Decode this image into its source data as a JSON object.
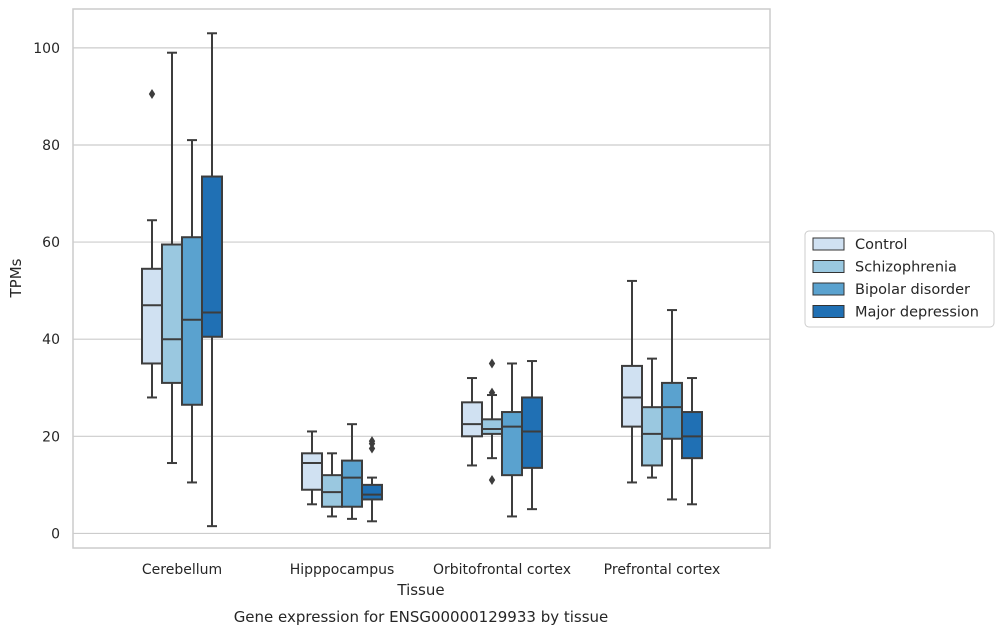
{
  "chart_data": {
    "type": "box",
    "title": "",
    "caption": "Gene expression for ENSG00000129933 by tissue",
    "xlabel": "Tissue",
    "ylabel": "TPMs",
    "ylim": [
      -3,
      108
    ],
    "yticks": [
      0,
      20,
      40,
      60,
      80,
      100
    ],
    "grid": "horizontal",
    "legend_position": "right",
    "categories": [
      "Cerebellum",
      "Hipppocampus",
      "Orbitofrontal cortex",
      "Prefrontal cortex"
    ],
    "series": [
      {
        "name": "Control",
        "color": "#d0e1f2",
        "boxes": [
          {
            "whisker_low": 28,
            "q1": 35,
            "median": 47,
            "q3": 54.5,
            "whisker_high": 64.5,
            "outliers": [
              90.5
            ]
          },
          {
            "whisker_low": 6,
            "q1": 9,
            "median": 14.5,
            "q3": 16.5,
            "whisker_high": 21,
            "outliers": []
          },
          {
            "whisker_low": 14,
            "q1": 20,
            "median": 22.5,
            "q3": 27,
            "whisker_high": 32,
            "outliers": []
          },
          {
            "whisker_low": 10.5,
            "q1": 22,
            "median": 28,
            "q3": 34.5,
            "whisker_high": 52,
            "outliers": []
          }
        ]
      },
      {
        "name": "Schizophrenia",
        "color": "#9ac8e0",
        "boxes": [
          {
            "whisker_low": 14.5,
            "q1": 31,
            "median": 40,
            "q3": 59.5,
            "whisker_high": 99,
            "outliers": []
          },
          {
            "whisker_low": 3.5,
            "q1": 5.5,
            "median": 8.5,
            "q3": 12,
            "whisker_high": 16.5,
            "outliers": []
          },
          {
            "whisker_low": 15.5,
            "q1": 20.5,
            "median": 21.5,
            "q3": 23.5,
            "whisker_high": 28.5,
            "outliers": [
              11,
              29,
              35
            ]
          },
          {
            "whisker_low": 11.5,
            "q1": 14,
            "median": 20.5,
            "q3": 26,
            "whisker_high": 36,
            "outliers": []
          }
        ]
      },
      {
        "name": "Bipolar disorder",
        "color": "#5aa2cf",
        "boxes": [
          {
            "whisker_low": 10.5,
            "q1": 26.5,
            "median": 44,
            "q3": 61,
            "whisker_high": 81,
            "outliers": []
          },
          {
            "whisker_low": 3,
            "q1": 5.5,
            "median": 11.5,
            "q3": 15,
            "whisker_high": 22.5,
            "outliers": []
          },
          {
            "whisker_low": 3.5,
            "q1": 12,
            "median": 22,
            "q3": 25,
            "whisker_high": 35,
            "outliers": []
          },
          {
            "whisker_low": 7,
            "q1": 19.5,
            "median": 26,
            "q3": 31,
            "whisker_high": 46,
            "outliers": []
          }
        ]
      },
      {
        "name": "Major depression",
        "color": "#2070b4",
        "boxes": [
          {
            "whisker_low": 1.5,
            "q1": 40.5,
            "median": 45.5,
            "q3": 73.5,
            "whisker_high": 103,
            "outliers": []
          },
          {
            "whisker_low": 2.5,
            "q1": 7,
            "median": 8,
            "q3": 10,
            "whisker_high": 11.5,
            "outliers": [
              17.5,
              18.5,
              19
            ]
          },
          {
            "whisker_low": 5,
            "q1": 13.5,
            "median": 21,
            "q3": 28,
            "whisker_high": 35.5,
            "outliers": []
          },
          {
            "whisker_low": 6,
            "q1": 15.5,
            "median": 20,
            "q3": 25,
            "whisker_high": 32,
            "outliers": []
          }
        ]
      }
    ],
    "style": {
      "line_color": "#3d3d3d",
      "grid_color": "#cccccc",
      "frame_color": "#cccccc"
    }
  }
}
